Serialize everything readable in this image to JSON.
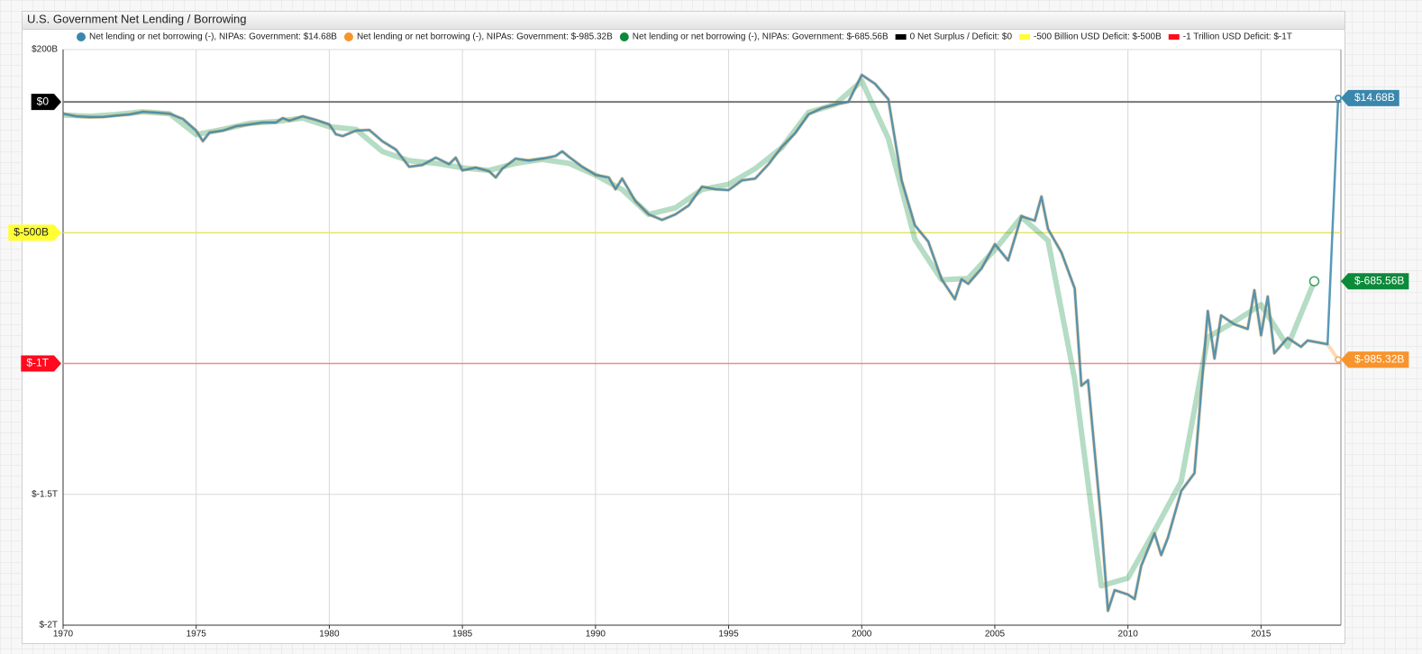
{
  "chart_data": {
    "type": "line",
    "title": "U.S. Government Net Lending / Borrowing",
    "xlim": [
      1970,
      2018
    ],
    "xticks": [
      1970,
      1975,
      1980,
      1985,
      1990,
      1995,
      2000,
      2005,
      2010,
      2015
    ],
    "ylim": [
      -2000,
      200
    ],
    "yticks": [
      {
        "value": 200,
        "label": "$200B"
      },
      {
        "value": 0,
        "label": "$0"
      },
      {
        "value": -500,
        "label": "$-500B"
      },
      {
        "value": -1000,
        "label": "$-1T"
      },
      {
        "value": -1500,
        "label": "$-1.5T"
      },
      {
        "value": -2000,
        "label": "$-2T"
      }
    ],
    "grid": true,
    "series": [
      {
        "name": "Net lending or net borrowing (-), NIPAs: Government: $14.68B",
        "color": "#3a87ad",
        "width": 2.5,
        "opacity": 0.85,
        "end_label": "$14.68B",
        "x": [
          1970,
          1970.5,
          1971,
          1971.5,
          1972,
          1972.5,
          1973,
          1973.5,
          1974,
          1974.5,
          1975,
          1975.25,
          1975.5,
          1976,
          1976.5,
          1977,
          1977.5,
          1978,
          1978.25,
          1978.5,
          1979,
          1979.5,
          1980,
          1980.25,
          1980.5,
          1981,
          1981.5,
          1982,
          1982.5,
          1983,
          1983.5,
          1984,
          1984.5,
          1984.75,
          1985,
          1985.5,
          1986,
          1986.25,
          1986.5,
          1987,
          1987.5,
          1988,
          1988.5,
          1988.75,
          1989,
          1989.5,
          1990,
          1990.5,
          1990.75,
          1991,
          1991.5,
          1992,
          1992.5,
          1993,
          1993.5,
          1994,
          1994.5,
          1995,
          1995.5,
          1996,
          1996.5,
          1997,
          1997.5,
          1998,
          1998.5,
          1999,
          1999.5,
          2000,
          2000.5,
          2001,
          2001.5,
          2002,
          2002.5,
          2003,
          2003.5,
          2003.75,
          2004,
          2004.5,
          2005,
          2005.5,
          2006,
          2006.5,
          2006.75,
          2007,
          2007.5,
          2008,
          2008.25,
          2008.5,
          2009,
          2009.25,
          2009.5,
          2010,
          2010.25,
          2010.5,
          2011,
          2011.25,
          2011.5,
          2012,
          2012.5,
          2013,
          2013.25,
          2013.5,
          2014,
          2014.5,
          2014.75,
          2015,
          2015.25,
          2015.5,
          2016,
          2016.5,
          2016.75,
          2017.5,
          2017.9
        ],
        "values": [
          -45,
          -55,
          -58,
          -58,
          -52,
          -48,
          -38,
          -41,
          -45,
          -65,
          -110,
          -150,
          -117,
          -110,
          -93,
          -86,
          -79,
          -79,
          -62,
          -72,
          -55,
          -69,
          -86,
          -124,
          -131,
          -110,
          -107,
          -151,
          -182,
          -248,
          -241,
          -213,
          -238,
          -213,
          -262,
          -251,
          -265,
          -289,
          -255,
          -217,
          -224,
          -217,
          -207,
          -189,
          -210,
          -248,
          -279,
          -289,
          -334,
          -293,
          -379,
          -430,
          -451,
          -430,
          -396,
          -324,
          -334,
          -337,
          -300,
          -293,
          -238,
          -172,
          -120,
          -48,
          -24,
          -10,
          0,
          103,
          69,
          10,
          -300,
          -472,
          -534,
          -678,
          -754,
          -678,
          -695,
          -637,
          -544,
          -606,
          -437,
          -454,
          -362,
          -486,
          -575,
          -713,
          -1085,
          -1064,
          -1608,
          -1945,
          -1866,
          -1883,
          -1900,
          -1773,
          -1649,
          -1732,
          -1666,
          -1487,
          -1419,
          -799,
          -981,
          -816,
          -850,
          -868,
          -720,
          -892,
          -744,
          -961,
          -902,
          -936,
          -912,
          -926,
          14.68
        ]
      },
      {
        "name": "Net lending or net borrowing (-), NIPAs: Government: $-985.32B",
        "color": "#f7942d",
        "width": 4,
        "opacity": 0.35,
        "end_label": "$-985.32B",
        "x": [
          1970,
          1970.5,
          1971,
          1971.5,
          1972,
          1972.5,
          1973,
          1973.5,
          1974,
          1974.5,
          1975,
          1975.25,
          1975.5,
          1976,
          1976.5,
          1977,
          1977.5,
          1978,
          1978.25,
          1978.5,
          1979,
          1979.5,
          1980,
          1980.25,
          1980.5,
          1981,
          1981.5,
          1982,
          1982.5,
          1983,
          1983.5,
          1984,
          1984.5,
          1984.75,
          1985,
          1985.5,
          1986,
          1986.25,
          1986.5,
          1987,
          1987.5,
          1988,
          1988.5,
          1988.75,
          1989,
          1989.5,
          1990,
          1990.5,
          1990.75,
          1991,
          1991.5,
          1992,
          1992.5,
          1993,
          1993.5,
          1994,
          1994.5,
          1995,
          1995.5,
          1996,
          1996.5,
          1997,
          1997.5,
          1998,
          1998.5,
          1999,
          1999.5,
          2000,
          2000.5,
          2001,
          2001.5,
          2002,
          2002.5,
          2003,
          2003.5,
          2003.75,
          2004,
          2004.5,
          2005,
          2005.5,
          2006,
          2006.5,
          2006.75,
          2007,
          2007.5,
          2008,
          2008.25,
          2008.5,
          2009,
          2009.25,
          2009.5,
          2010,
          2010.25,
          2010.5,
          2011,
          2011.25,
          2011.5,
          2012,
          2012.5,
          2013,
          2013.25,
          2013.5,
          2014,
          2014.5,
          2014.75,
          2015,
          2015.25,
          2015.5,
          2016,
          2016.5,
          2016.75,
          2017.5,
          2017.9
        ],
        "values": [
          -45,
          -55,
          -58,
          -58,
          -52,
          -48,
          -38,
          -41,
          -45,
          -65,
          -110,
          -150,
          -117,
          -110,
          -93,
          -86,
          -79,
          -79,
          -62,
          -72,
          -55,
          -69,
          -86,
          -124,
          -131,
          -110,
          -107,
          -151,
          -182,
          -248,
          -241,
          -213,
          -238,
          -213,
          -262,
          -251,
          -265,
          -289,
          -255,
          -217,
          -224,
          -217,
          -207,
          -189,
          -210,
          -248,
          -279,
          -289,
          -334,
          -293,
          -379,
          -430,
          -451,
          -430,
          -396,
          -324,
          -334,
          -337,
          -300,
          -293,
          -238,
          -172,
          -120,
          -48,
          -24,
          -10,
          0,
          103,
          69,
          10,
          -300,
          -472,
          -534,
          -678,
          -754,
          -678,
          -695,
          -637,
          -544,
          -606,
          -437,
          -454,
          -362,
          -486,
          -575,
          -713,
          -1085,
          -1064,
          -1608,
          -1945,
          -1866,
          -1883,
          -1900,
          -1773,
          -1649,
          -1732,
          -1666,
          -1487,
          -1419,
          -799,
          -981,
          -816,
          -850,
          -868,
          -720,
          -892,
          -744,
          -961,
          -902,
          -936,
          -912,
          -926,
          -985.32
        ]
      },
      {
        "name": "Net lending or net borrowing (-), NIPAs: Government: $-685.56B",
        "color": "#0b8a3a",
        "width": 6,
        "opacity": 0.3,
        "end_label": "$-685.56B",
        "x": [
          1970,
          1971,
          1972,
          1973,
          1974,
          1975,
          1976,
          1977,
          1978,
          1979,
          1980,
          1981,
          1982,
          1983,
          1984,
          1985,
          1986,
          1987,
          1988,
          1989,
          1990,
          1991,
          1992,
          1993,
          1994,
          1995,
          1996,
          1997,
          1998,
          1999,
          2000,
          2001,
          2002,
          2003,
          2004,
          2005,
          2006,
          2007,
          2008,
          2009,
          2010,
          2011,
          2012,
          2013,
          2014,
          2015,
          2016,
          2017
        ],
        "values": [
          -50,
          -55,
          -48,
          -38,
          -45,
          -125,
          -105,
          -82,
          -75,
          -62,
          -95,
          -105,
          -190,
          -225,
          -235,
          -252,
          -262,
          -235,
          -220,
          -235,
          -280,
          -335,
          -430,
          -405,
          -335,
          -315,
          -255,
          -175,
          -40,
          -10,
          80,
          -140,
          -525,
          -680,
          -675,
          -565,
          -440,
          -530,
          -1060,
          -1850,
          -1820,
          -1640,
          -1450,
          -900,
          -840,
          -775,
          -935,
          -685.56
        ]
      }
    ],
    "thresholds": [
      {
        "name": "0 Net Surplus / Deficit: $0",
        "value": 0,
        "label": "$0",
        "color": "#000000",
        "line": "#777777"
      },
      {
        "name": "-500 Billion USD Deficit: $-500B",
        "value": -500,
        "label": "$-500B",
        "color": "#ffff33",
        "line": "#e6e66a"
      },
      {
        "name": "-1 Trillion USD Deficit: $-1T",
        "value": -1000,
        "label": "$-1T",
        "color": "#ff0a1e",
        "line": "#f08a8a"
      }
    ]
  }
}
